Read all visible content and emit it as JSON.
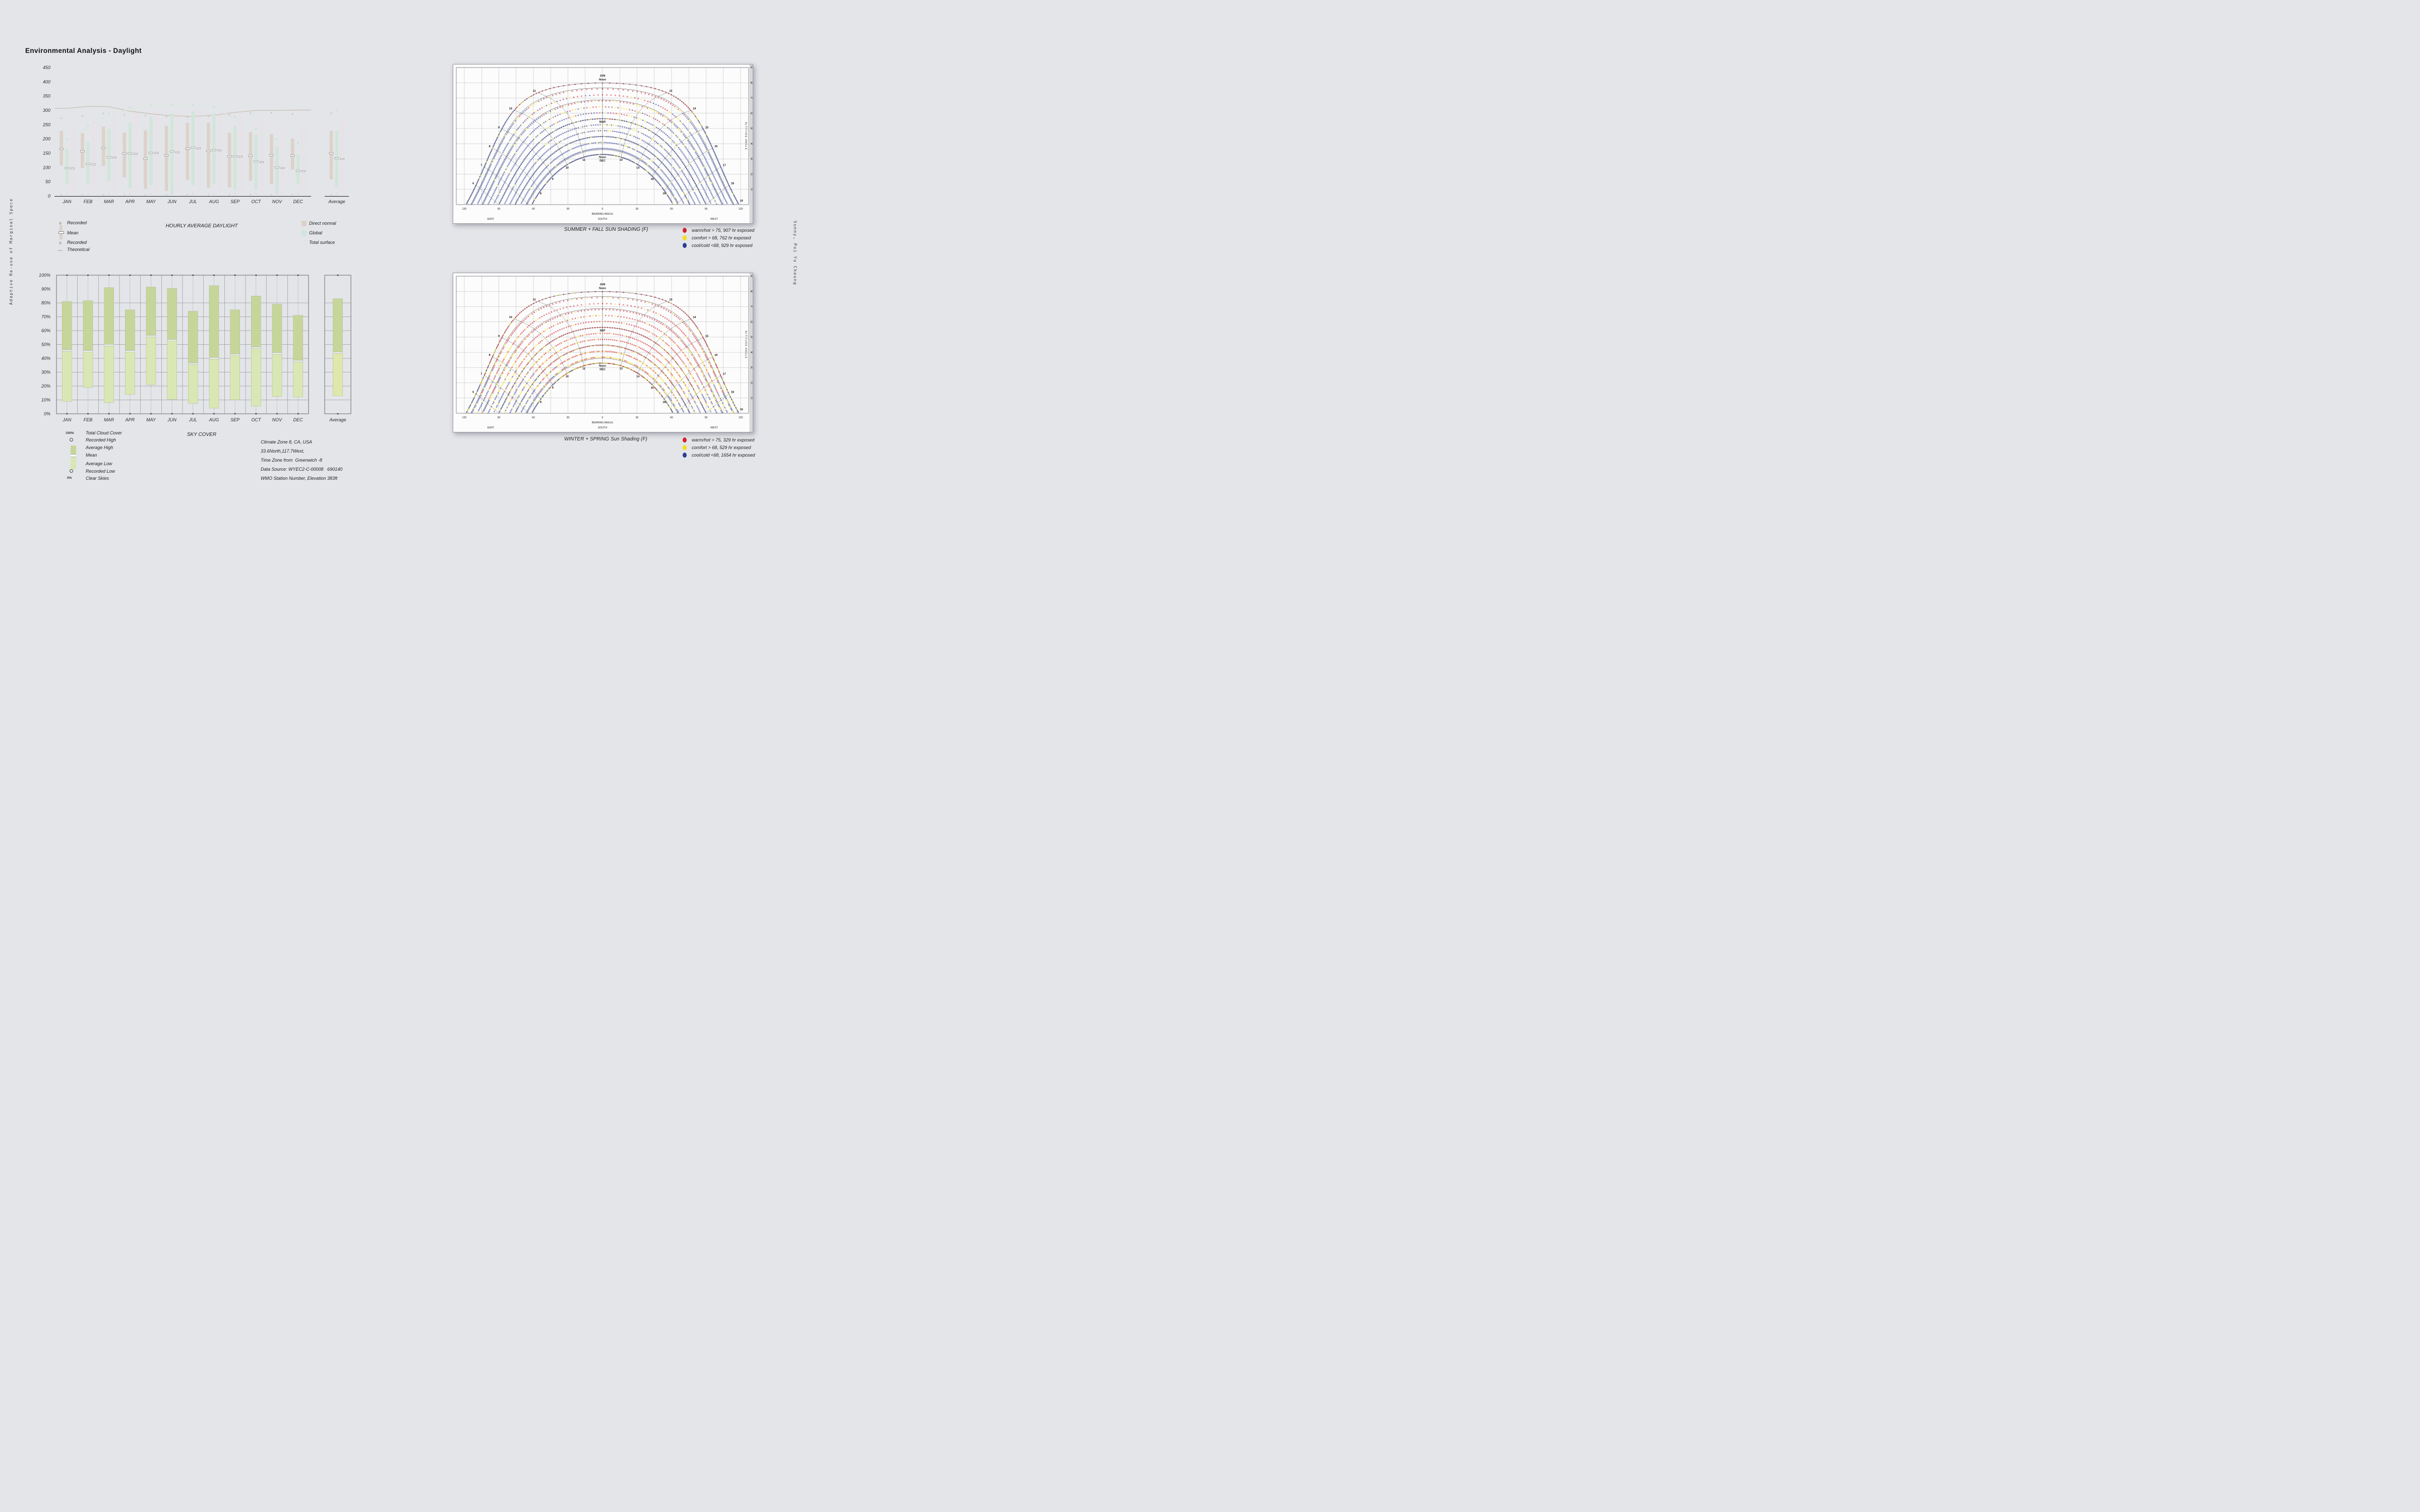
{
  "page": {
    "background": "#e3e5e9",
    "title": "Environmental Analysis - Daylight"
  },
  "side_texts": {
    "left": "Adaptive Re-use of Marginal Space",
    "right": "Sunny, Pui Yu Cheung"
  },
  "climate_info": {
    "lines": [
      "Climate Zone 8, CA, USA",
      "33.6North,117.7West,",
      "Time Zone from  Greenwich -8",
      "Data Source: WYEC2-C-00008   690140",
      "WMO Station Number, Elevation 383ft"
    ]
  },
  "chart_data": {
    "daylight": {
      "type": "bar",
      "title": "HOURLY AVERAGE DAYLIGHT",
      "ylim": [
        0,
        450
      ],
      "yticks": [
        0,
        50,
        100,
        150,
        200,
        250,
        300,
        350,
        400,
        450
      ],
      "categories": [
        "JAN",
        "FEB",
        "MAR",
        "APR",
        "MAY",
        "JUN",
        "JUL",
        "AUG",
        "SEP",
        "OCT",
        "NOV",
        "DEC",
        "Average"
      ],
      "note": "last element of each value array is the Average column",
      "series": {
        "direct_normal": {
          "color": "#dcd2c8",
          "dot_color": "#c5b2a2",
          "line_color": "#c8bfb0",
          "low": [
            107,
            98,
            105,
            65,
            25,
            18,
            57,
            29,
            30,
            53,
            42,
            93,
            59
          ],
          "high": [
            228,
            220,
            243,
            222,
            230,
            246,
            257,
            257,
            221,
            224,
            217,
            201,
            228
          ],
          "mean": [
            165,
            157,
            168,
            149,
            131,
            143,
            166,
            158,
            139,
            141,
            143,
            141,
            150
          ],
          "theoretical": [
            307,
            314,
            313,
            297,
            288,
            281,
            279,
            283,
            293,
            300,
            300,
            301
          ],
          "recorded_high": [
            272,
            281,
            289,
            285,
            282,
            278,
            276,
            279,
            284,
            290,
            292,
            288,
            290
          ],
          "recorded_low": [
            5,
            5,
            5,
            5,
            5,
            5,
            5,
            5,
            5,
            5,
            5,
            5,
            5
          ]
        },
        "global": {
          "color": "#d3e5da",
          "dot_color": "#b9d6c6",
          "line_color": "#d8ebdc",
          "low": [
            40,
            43,
            52,
            28,
            38,
            8,
            37,
            43,
            21,
            24,
            10,
            42,
            31
          ],
          "high": [
            165,
            190,
            235,
            258,
            277,
            290,
            297,
            290,
            245,
            214,
            173,
            146,
            229
          ],
          "mean": [
            98,
            113,
            136,
            149,
            151,
            156,
            170,
            161,
            139,
            122,
            100,
            88,
            132
          ],
          "theoretical": [
            190,
            240,
            283,
            305,
            315,
            316,
            316,
            308,
            272,
            229,
            194,
            179
          ],
          "recorded_high": [
            200,
            248,
            290,
            310,
            318,
            320,
            318,
            312,
            278,
            236,
            200,
            186,
            300
          ],
          "recorded_low": [
            8,
            8,
            8,
            8,
            8,
            8,
            8,
            8,
            8,
            8,
            8,
            8,
            8
          ]
        },
        "total_surface": {
          "color": "#e7e2e7",
          "low": [
            10,
            12,
            14,
            15,
            15,
            15,
            15,
            15,
            14,
            12,
            10,
            10,
            12
          ],
          "high": [
            255,
            270,
            295,
            300,
            302,
            305,
            305,
            303,
            295,
            275,
            258,
            248,
            280
          ],
          "mean": [
            97,
            111,
            135,
            148,
            151,
            153,
            167,
            160,
            138,
            119,
            98,
            87,
            130
          ]
        }
      },
      "legend": {
        "recorded": "Recorded",
        "mean": "Mean",
        "recorded2": "Recorded",
        "theoretical": "Theoretical",
        "direct_normal": "Direct normal",
        "global": "Global",
        "total_surface": "Total surface"
      }
    },
    "sky_cover": {
      "type": "bar",
      "title": "SKY COVER",
      "ylim": [
        0,
        100
      ],
      "yticks_pct": [
        0,
        10,
        20,
        30,
        40,
        50,
        60,
        70,
        80,
        90,
        100
      ],
      "categories": [
        "JAN",
        "FEB",
        "MAR",
        "APR",
        "MAY",
        "JUN",
        "JUL",
        "AUG",
        "SEP",
        "OCT",
        "NOV",
        "DEC",
        "Average"
      ],
      "average_high": [
        81,
        81.5,
        91,
        75,
        91.5,
        90.5,
        74,
        92.5,
        75,
        85,
        79,
        71,
        83
      ],
      "mean": [
        45.5,
        45,
        49.5,
        45,
        56,
        53,
        36,
        40,
        42.5,
        47.5,
        43.5,
        38,
        44
      ],
      "average_low": [
        9,
        19,
        8,
        14,
        21,
        10.5,
        7.5,
        4,
        10,
        5.5,
        12.5,
        12,
        13
      ],
      "recorded_high": 100,
      "recorded_low": 0,
      "colors": {
        "high": "#c6d69b",
        "low": "#d9e7b4",
        "low_average": "#dfe7ab",
        "mean": "#eef0f2"
      },
      "legend": {
        "scale_top": "100%",
        "total": "Total Cloud Cover",
        "rec_high": "Recorded High",
        "avg_high": "Average High",
        "mean": "Mean",
        "avg_low": "Average Low",
        "rec_low": "Recorded Low",
        "scale_bottom": "0%",
        "clear": "Clear Skies"
      }
    },
    "sun_summer": {
      "type": "sun-path",
      "season": "summer_fall",
      "seed": 7,
      "title": "SUMMER + FALL SUN SHADING (F)",
      "latitude_deg": 33.6,
      "month_declinations": [
        23.45,
        20.2,
        12.4,
        0,
        -11.5,
        -20.3,
        -23.45
      ],
      "dotted_arcs": 13,
      "hours": [
        5,
        6,
        7,
        8,
        9,
        10,
        11,
        12,
        13,
        14,
        15,
        16,
        17,
        18,
        19
      ],
      "hour_labels_outer": [
        6,
        7,
        8,
        9,
        10,
        11,
        13,
        14,
        15,
        16,
        17,
        18,
        19
      ],
      "hour_labels_inner": [
        8,
        9,
        10,
        11,
        13,
        14,
        15,
        16
      ],
      "annotations": {
        "top_month": "JUN",
        "top_noon": "Noon",
        "mid_month": "MAR",
        "inner_noon": "Noon",
        "inner_month": "DEC"
      },
      "axis": {
        "x_ticks": [
          120,
          90,
          60,
          30,
          0,
          30,
          60,
          90,
          120
        ],
        "x_label": "BEARING ANGLE",
        "south": "SOUTH",
        "east": "EAST",
        "west": "WEST",
        "y_label": "ALTITUDE ANGLE",
        "y_ticks": [
          10,
          20,
          30,
          40,
          50,
          60,
          70,
          80,
          90
        ]
      },
      "colors": {
        "warm": "#d42127",
        "comfort": "#f3df15",
        "cool": "#2e3d8f"
      },
      "legend": [
        {
          "color_key": "warm",
          "label": "warm/hot > 75, 907 hr exposed"
        },
        {
          "color_key": "comfort",
          "label": "comfort > 68, 762 hr exposed"
        },
        {
          "color_key": "cool",
          "label": "cool/cold <68, 929 hr exposed"
        }
      ]
    },
    "sun_winter": {
      "type": "sun-path",
      "season": "winter_spring",
      "seed": 13,
      "title": "WINTER + SPRING Sun Shading (F)",
      "latitude_deg": 33.6,
      "month_declinations": [
        23.45,
        20.2,
        12.4,
        0,
        -11.5,
        -20.3,
        -23.45
      ],
      "dotted_arcs": 13,
      "hours": [
        5,
        6,
        7,
        8,
        9,
        10,
        11,
        12,
        13,
        14,
        15,
        16,
        17,
        18,
        19
      ],
      "hour_labels_outer": [
        6,
        7,
        8,
        9,
        10,
        11,
        13,
        14,
        15,
        16,
        17,
        18,
        19
      ],
      "hour_labels_inner": [
        8,
        9,
        10,
        11,
        13,
        14,
        15,
        16
      ],
      "annotations": {
        "top_month": "JUN",
        "top_noon": "Noon",
        "mid_month": "SEP",
        "inner_noon": "Noon",
        "inner_month": "DEC"
      },
      "axis": {
        "x_ticks": [
          120,
          90,
          60,
          30,
          0,
          30,
          60,
          90,
          120
        ],
        "x_label": "BEARING ANGLE",
        "south": "SOUTH",
        "east": "EAST",
        "west": "WEST",
        "y_label": "ALTITUDE ANGLE",
        "y_ticks": [
          10,
          20,
          30,
          40,
          50,
          60,
          70,
          80,
          90
        ]
      },
      "colors": {
        "warm": "#d42127",
        "comfort": "#f3df15",
        "cool": "#2e3d8f"
      },
      "legend": [
        {
          "color_key": "warm",
          "label": "warm/hot > 75, 329 hr exposed"
        },
        {
          "color_key": "comfort",
          "label": "comfort > 68, 529 hr exposed"
        },
        {
          "color_key": "cool",
          "label": "cool/cold <68, 1654 hr exposed"
        }
      ]
    }
  }
}
